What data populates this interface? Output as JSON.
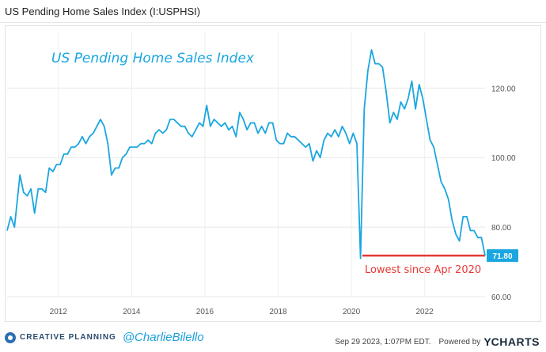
{
  "header": {
    "title": "US Pending Home Sales Index (I:USPHSI)"
  },
  "chart_data": {
    "type": "line",
    "title": "US Pending Home Sales Index",
    "xlabel": "",
    "ylabel": "",
    "xlim": [
      2010.6,
      2023.65
    ],
    "ylim": [
      60,
      136
    ],
    "x_ticks": [
      "2012",
      "2014",
      "2016",
      "2018",
      "2020",
      "2022"
    ],
    "y_ticks": [
      "60.00",
      "80.00",
      "100.00",
      "120.00"
    ],
    "grid": true,
    "series": [
      {
        "color": "#1aa6e0",
        "x": [
          2010.6,
          2010.7,
          2010.8,
          2010.95,
          2011.05,
          2011.15,
          2011.25,
          2011.35,
          2011.45,
          2011.55,
          2011.65,
          2011.75,
          2011.85,
          2011.95,
          2012.05,
          2012.15,
          2012.25,
          2012.35,
          2012.45,
          2012.55,
          2012.65,
          2012.75,
          2012.85,
          2012.95,
          2013.05,
          2013.15,
          2013.25,
          2013.35,
          2013.45,
          2013.55,
          2013.65,
          2013.75,
          2013.85,
          2013.95,
          2014.05,
          2014.15,
          2014.25,
          2014.35,
          2014.45,
          2014.55,
          2014.65,
          2014.75,
          2014.85,
          2014.95,
          2015.05,
          2015.15,
          2015.25,
          2015.35,
          2015.45,
          2015.55,
          2015.65,
          2015.75,
          2015.85,
          2015.95,
          2016.05,
          2016.15,
          2016.25,
          2016.35,
          2016.45,
          2016.55,
          2016.65,
          2016.75,
          2016.85,
          2016.95,
          2017.05,
          2017.15,
          2017.25,
          2017.35,
          2017.45,
          2017.55,
          2017.65,
          2017.75,
          2017.85,
          2017.95,
          2018.05,
          2018.15,
          2018.25,
          2018.35,
          2018.45,
          2018.55,
          2018.65,
          2018.75,
          2018.85,
          2018.95,
          2019.05,
          2019.15,
          2019.25,
          2019.35,
          2019.45,
          2019.55,
          2019.65,
          2019.75,
          2019.85,
          2019.95,
          2020.05,
          2020.15,
          2020.25,
          2020.35,
          2020.45,
          2020.55,
          2020.65,
          2020.75,
          2020.85,
          2020.95,
          2021.05,
          2021.15,
          2021.25,
          2021.35,
          2021.45,
          2021.55,
          2021.65,
          2021.75,
          2021.85,
          2021.95,
          2022.05,
          2022.15,
          2022.25,
          2022.35,
          2022.45,
          2022.55,
          2022.65,
          2022.75,
          2022.85,
          2022.95,
          2023.05,
          2023.15,
          2023.25,
          2023.35,
          2023.45,
          2023.55,
          2023.65
        ],
        "values": [
          79,
          83,
          80,
          95,
          90,
          89,
          91,
          84,
          91,
          91,
          90,
          97,
          96,
          98,
          98,
          101,
          101,
          103,
          103,
          104,
          106,
          104,
          106,
          107,
          109,
          111,
          109,
          104,
          95,
          97,
          97,
          100,
          101,
          103,
          103,
          103,
          104,
          104,
          105,
          104,
          107,
          108,
          107,
          108,
          111,
          111,
          110,
          109,
          109,
          107,
          106,
          108,
          110,
          109,
          115,
          109,
          111,
          110,
          109,
          110,
          108,
          109,
          106,
          113,
          111,
          108,
          110,
          110,
          107,
          109,
          107,
          110,
          110,
          105,
          104,
          104,
          107,
          106,
          106,
          105,
          104,
          103,
          104,
          99,
          102,
          100,
          105,
          107,
          106,
          108,
          106,
          109,
          107,
          104,
          107,
          104,
          71,
          114,
          125,
          131,
          127,
          127,
          126,
          119,
          110,
          113,
          111,
          116,
          114,
          117,
          122,
          114,
          121,
          117,
          111,
          105,
          103,
          98,
          93,
          91,
          88,
          82,
          78,
          76,
          83,
          83,
          79,
          79,
          77,
          77,
          71.8
        ]
      }
    ],
    "last_value_label": "71.80",
    "reference_line": {
      "value": 71.8,
      "x_start": 2020.3,
      "x_end": 2023.65,
      "color": "#e53935"
    },
    "annotation": {
      "text": "Lowest since Apr 2020",
      "color": "#e53935"
    },
    "chart_label": {
      "text": "US Pending Home Sales Index",
      "color": "#1aa6e0"
    }
  },
  "footer": {
    "brand": "CREATIVE PLANNING",
    "handle": "@CharlieBilello",
    "timestamp": "Sep 29 2023, 1:07PM EDT.",
    "powered_by": "Powered by",
    "ycharts_logo": "Y",
    "ycharts_name": "CHARTS"
  }
}
